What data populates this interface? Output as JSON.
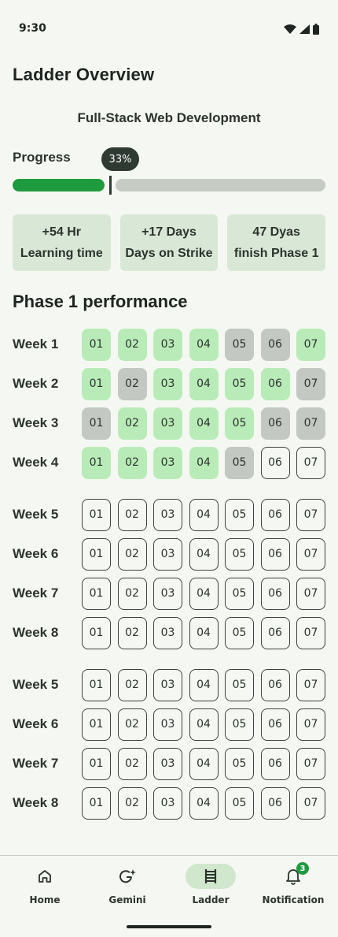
{
  "status_bar": {
    "time": "9:30"
  },
  "header": {
    "title": "Ladder Overview",
    "course": "Full-Stack Web Development"
  },
  "progress": {
    "label": "Progress",
    "value_text": "33%",
    "value": 0.33
  },
  "stats": [
    {
      "value": "+54 Hr",
      "label": "Learning time"
    },
    {
      "value": "+17 Days",
      "label": "Days on Strike"
    },
    {
      "value": "47 Dyas",
      "label": "finish Phase 1"
    }
  ],
  "section": {
    "title": "Phase 1 performance"
  },
  "weeks": [
    {
      "label": "Week 1",
      "days": [
        {
          "n": "01",
          "s": "done"
        },
        {
          "n": "02",
          "s": "done"
        },
        {
          "n": "03",
          "s": "done"
        },
        {
          "n": "04",
          "s": "done"
        },
        {
          "n": "05",
          "s": "miss"
        },
        {
          "n": "06",
          "s": "miss"
        },
        {
          "n": "07",
          "s": "done"
        }
      ]
    },
    {
      "label": "Week 2",
      "days": [
        {
          "n": "01",
          "s": "done"
        },
        {
          "n": "02",
          "s": "miss"
        },
        {
          "n": "03",
          "s": "done"
        },
        {
          "n": "04",
          "s": "done"
        },
        {
          "n": "05",
          "s": "done"
        },
        {
          "n": "06",
          "s": "done"
        },
        {
          "n": "07",
          "s": "miss"
        }
      ]
    },
    {
      "label": "Week 3",
      "days": [
        {
          "n": "01",
          "s": "miss"
        },
        {
          "n": "02",
          "s": "done"
        },
        {
          "n": "03",
          "s": "done"
        },
        {
          "n": "04",
          "s": "done"
        },
        {
          "n": "05",
          "s": "done"
        },
        {
          "n": "06",
          "s": "miss"
        },
        {
          "n": "07",
          "s": "miss"
        }
      ]
    },
    {
      "label": "Week 4",
      "days": [
        {
          "n": "01",
          "s": "done"
        },
        {
          "n": "02",
          "s": "done"
        },
        {
          "n": "03",
          "s": "done"
        },
        {
          "n": "04",
          "s": "done"
        },
        {
          "n": "05",
          "s": "miss"
        },
        {
          "n": "06",
          "s": "empty"
        },
        {
          "n": "07",
          "s": "empty"
        }
      ]
    },
    {
      "label": "Week 5",
      "days": [
        {
          "n": "01",
          "s": "empty"
        },
        {
          "n": "02",
          "s": "empty"
        },
        {
          "n": "03",
          "s": "empty"
        },
        {
          "n": "04",
          "s": "empty"
        },
        {
          "n": "05",
          "s": "empty"
        },
        {
          "n": "06",
          "s": "empty"
        },
        {
          "n": "07",
          "s": "empty"
        }
      ]
    },
    {
      "label": "Week 6",
      "days": [
        {
          "n": "01",
          "s": "empty"
        },
        {
          "n": "02",
          "s": "empty"
        },
        {
          "n": "03",
          "s": "empty"
        },
        {
          "n": "04",
          "s": "empty"
        },
        {
          "n": "05",
          "s": "empty"
        },
        {
          "n": "06",
          "s": "empty"
        },
        {
          "n": "07",
          "s": "empty"
        }
      ]
    },
    {
      "label": "Week 7",
      "days": [
        {
          "n": "01",
          "s": "empty"
        },
        {
          "n": "02",
          "s": "empty"
        },
        {
          "n": "03",
          "s": "empty"
        },
        {
          "n": "04",
          "s": "empty"
        },
        {
          "n": "05",
          "s": "empty"
        },
        {
          "n": "06",
          "s": "empty"
        },
        {
          "n": "07",
          "s": "empty"
        }
      ]
    },
    {
      "label": "Week 8",
      "days": [
        {
          "n": "01",
          "s": "empty"
        },
        {
          "n": "02",
          "s": "empty"
        },
        {
          "n": "03",
          "s": "empty"
        },
        {
          "n": "04",
          "s": "empty"
        },
        {
          "n": "05",
          "s": "empty"
        },
        {
          "n": "06",
          "s": "empty"
        },
        {
          "n": "07",
          "s": "empty"
        }
      ]
    },
    {
      "label": "Week 5",
      "days": [
        {
          "n": "01",
          "s": "empty"
        },
        {
          "n": "02",
          "s": "empty"
        },
        {
          "n": "03",
          "s": "empty"
        },
        {
          "n": "04",
          "s": "empty"
        },
        {
          "n": "05",
          "s": "empty"
        },
        {
          "n": "06",
          "s": "empty"
        },
        {
          "n": "07",
          "s": "empty"
        }
      ]
    },
    {
      "label": "Week 6",
      "days": [
        {
          "n": "01",
          "s": "empty"
        },
        {
          "n": "02",
          "s": "empty"
        },
        {
          "n": "03",
          "s": "empty"
        },
        {
          "n": "04",
          "s": "empty"
        },
        {
          "n": "05",
          "s": "empty"
        },
        {
          "n": "06",
          "s": "empty"
        },
        {
          "n": "07",
          "s": "empty"
        }
      ]
    },
    {
      "label": "Week 7",
      "days": [
        {
          "n": "01",
          "s": "empty"
        },
        {
          "n": "02",
          "s": "empty"
        },
        {
          "n": "03",
          "s": "empty"
        },
        {
          "n": "04",
          "s": "empty"
        },
        {
          "n": "05",
          "s": "empty"
        },
        {
          "n": "06",
          "s": "empty"
        },
        {
          "n": "07",
          "s": "empty"
        }
      ]
    },
    {
      "label": "Week 8",
      "days": [
        {
          "n": "01",
          "s": "empty"
        },
        {
          "n": "02",
          "s": "empty"
        },
        {
          "n": "03",
          "s": "empty"
        },
        {
          "n": "04",
          "s": "empty"
        },
        {
          "n": "05",
          "s": "empty"
        },
        {
          "n": "06",
          "s": "empty"
        },
        {
          "n": "07",
          "s": "empty"
        }
      ]
    }
  ],
  "nav": [
    {
      "label": "Home",
      "icon": "home-icon"
    },
    {
      "label": "Gemini",
      "icon": "gemini-icon"
    },
    {
      "label": "Ladder",
      "icon": "ladder-icon",
      "active": true
    },
    {
      "label": "Notification",
      "icon": "bell-icon",
      "badge": "3"
    }
  ],
  "colors": {
    "accent": "#1f9a3e",
    "done": "#b9ebb8",
    "missed": "#c4c8c2",
    "card": "#d9e8d6",
    "background": "#f5f8f2"
  }
}
